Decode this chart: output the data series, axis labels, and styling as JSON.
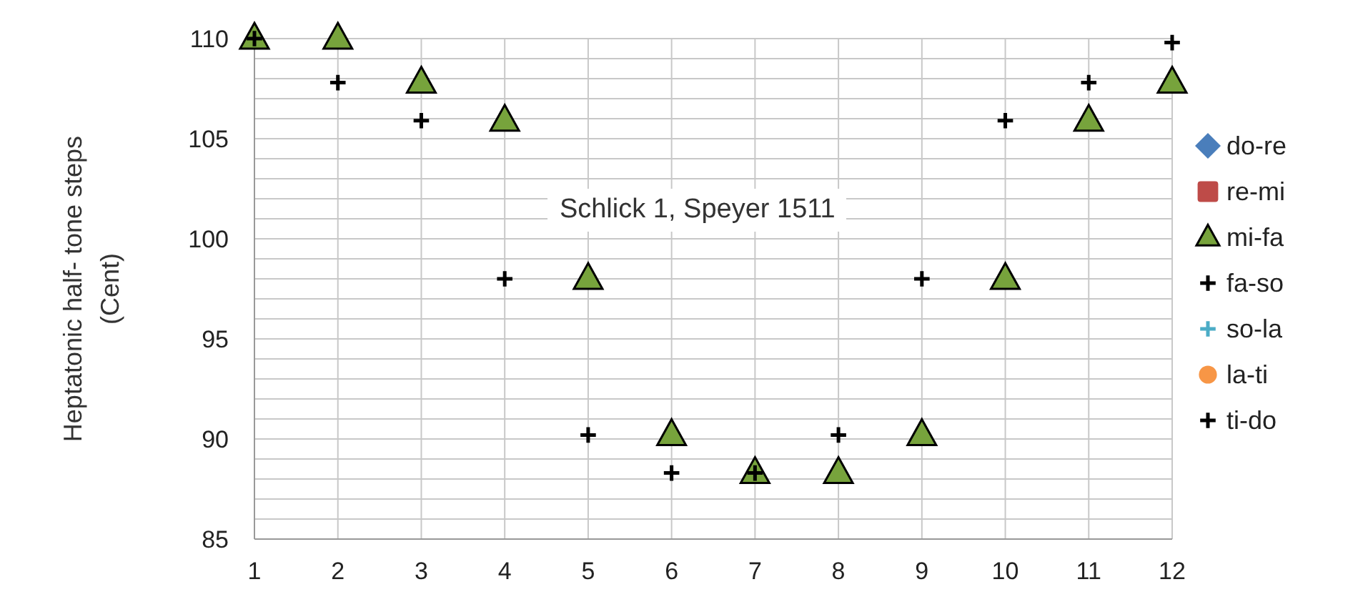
{
  "chart_data": {
    "type": "scatter",
    "ylabel": "Heptatonic half- tone steps (Cent)",
    "annotations": [
      "Schlick 1, Speyer 1511"
    ],
    "x": [
      1,
      2,
      3,
      4,
      5,
      6,
      7,
      8,
      9,
      10,
      11,
      12
    ],
    "xlim": [
      1,
      12
    ],
    "xticks": [
      1,
      2,
      3,
      4,
      5,
      6,
      7,
      8,
      9,
      10,
      11,
      12
    ],
    "ylim": [
      85,
      110
    ],
    "yticks": [
      85,
      {
        "value": 86,
        "label": null
      },
      {
        "value": 87,
        "label": null
      },
      {
        "value": 88,
        "label": null
      },
      {
        "value": 89,
        "label": null
      },
      90,
      {
        "value": 91,
        "label": null
      },
      {
        "value": 92,
        "label": null
      },
      {
        "value": 93,
        "label": null
      },
      {
        "value": 94,
        "label": null
      },
      95,
      {
        "value": 96,
        "label": null
      },
      {
        "value": 97,
        "label": null
      },
      {
        "value": 98,
        "label": null
      },
      {
        "value": 99,
        "label": null
      },
      100,
      {
        "value": 101,
        "label": null
      },
      {
        "value": 102,
        "label": null
      },
      {
        "value": 103,
        "label": null
      },
      {
        "value": 104,
        "label": null
      },
      105,
      {
        "value": 106,
        "label": null
      },
      {
        "value": 107,
        "label": null
      },
      {
        "value": 108,
        "label": null
      },
      {
        "value": 109,
        "label": null
      },
      110
    ],
    "grid": true,
    "legend": "right",
    "series": [
      {
        "name": "do-re",
        "color": "#4a7ebb",
        "marker": "diamond",
        "values": [
          null,
          null,
          null,
          null,
          null,
          null,
          null,
          null,
          null,
          null,
          null,
          null
        ]
      },
      {
        "name": "re-mi",
        "color": "#be4b48",
        "marker": "square",
        "values": [
          null,
          null,
          null,
          null,
          null,
          null,
          null,
          null,
          null,
          null,
          null,
          null
        ]
      },
      {
        "name": "mi-fa",
        "color": "#77a33c",
        "marker": "triangle",
        "values": [
          110,
          110,
          107.8,
          105.9,
          98,
          90.2,
          88.3,
          88.3,
          90.2,
          98,
          105.9,
          107.8
        ]
      },
      {
        "name": "fa-so",
        "color": "#000000",
        "marker": "cross",
        "values": [
          null,
          null,
          null,
          null,
          null,
          null,
          null,
          null,
          null,
          null,
          null,
          null
        ]
      },
      {
        "name": "so-la",
        "color": "#4bacc6",
        "marker": "cross",
        "values": [
          null,
          null,
          null,
          null,
          null,
          null,
          null,
          null,
          null,
          null,
          null,
          null
        ]
      },
      {
        "name": "la-ti",
        "color": "#f79646",
        "marker": "circle",
        "values": [
          null,
          null,
          null,
          null,
          null,
          null,
          null,
          null,
          null,
          null,
          null,
          null
        ]
      },
      {
        "name": "ti-do",
        "color": "#000000",
        "marker": "cross",
        "values": [
          110,
          107.8,
          105.9,
          98,
          90.2,
          88.3,
          88.3,
          90.2,
          98,
          105.9,
          107.8,
          109.8
        ]
      }
    ]
  }
}
